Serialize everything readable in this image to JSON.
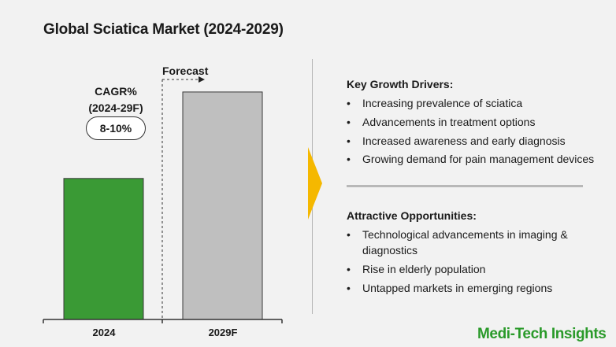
{
  "title": "Global Sciatica Market (2024-2029)",
  "chart_data": {
    "type": "bar",
    "title": "Global Sciatica Market (2024-2029)",
    "categories": [
      "2024",
      "2029F"
    ],
    "values": [
      0.62,
      1.0
    ],
    "value_note": "",
    "colors": [
      "#3a9a35",
      "#bfbfbf"
    ],
    "xlabel": "",
    "ylabel": "",
    "ylim": [
      0,
      1.1
    ],
    "grid": false,
    "annotations": {
      "cagr_label": "CAGR%",
      "cagr_period": "(2024-29F)",
      "cagr_value": "8-10%",
      "forecast_label": "Forecast"
    }
  },
  "panel": {
    "drivers_heading": "Key Growth Drivers:",
    "drivers": [
      "Increasing prevalence of sciatica",
      "Advancements in treatment options",
      "Increased awareness and early diagnosis",
      "Growing demand for pain management devices"
    ],
    "opportunities_heading": "Attractive Opportunities:",
    "opportunities": [
      "Technological advancements in imaging & diagnostics",
      "Rise in elderly population",
      "Untapped markets in emerging regions"
    ],
    "bullet_char": "•"
  },
  "colors": {
    "accent_arrow": "#f5b800",
    "brand": "#2a9a2a",
    "background": "#f2f2f2"
  },
  "brand": {
    "name": "Medi-Tech Insights"
  }
}
